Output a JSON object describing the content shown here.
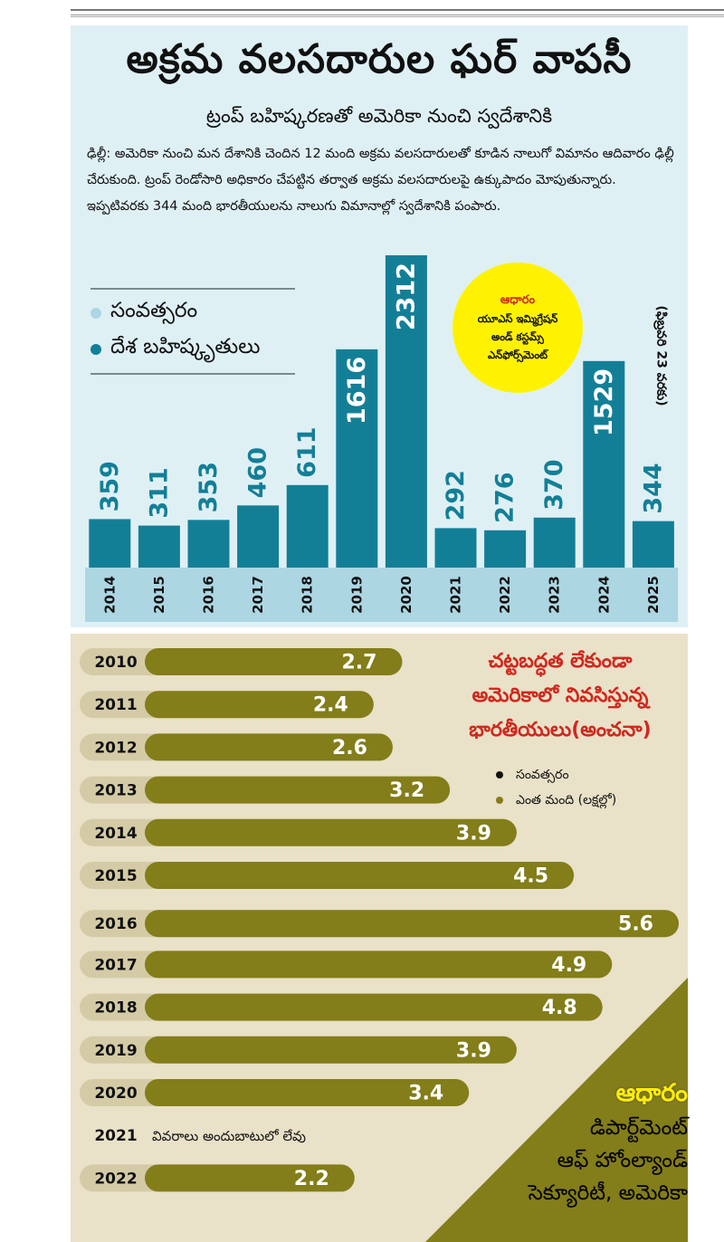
{
  "header": {
    "title": "అక్రమ వలసదారుల ఘర్ వాపసీ",
    "subtitle": "ట్రంప్ బహిష్కరణతో అమెరికా నుంచి స్వదేశానికి",
    "paragraph": "ఢిల్లీ: అమెరికా నుంచి మన దేశానికి చెందిన 12 మంది అక్రమ వలసదారులతో కూడిన నాలుగో విమానం ఆదివారం ఢిల్లీ చేరుకుంది. ట్రంప్ రెండోసారి అధికారం చేపట్టిన తర్వాత అక్రమ వలసదారులపై ఉక్కుపాదం మోపుతున్నారు. ఇప్పటివరకు 344 మంది భారతీయులను నాలుగు విమానాల్లో స్వదేశానికి పంపారు."
  },
  "legend_top": {
    "year_label": "సంవత్సరం",
    "deport_label": "దేశ బహిష్కృతులు"
  },
  "source_top": {
    "heading": "ఆధారం",
    "line1": "యూఎస్ ఇమ్మిగ్రేషన్",
    "line2": "అండ్ కస్టమ్స్",
    "line3": "ఎన్‌ఫోర్స్‌మెంట్"
  },
  "note_2025": "(ఫిబ్రవరి 23 వరకు)",
  "panel2": {
    "title_line1": "చట్టబద్ధత లేకుండా",
    "title_line2": "అమెరికాలో నివసిస్తున్న",
    "title_line3": "భారతీయులు(అంచనా)",
    "legend_year": "సంవత్సరం",
    "legend_count": "ఎంత మంది (లక్షల్లో)",
    "source_heading": "ఆధారం",
    "source_line1": "డిపార్ట్‌మెంట్",
    "source_line2": "ఆఫ్ హోంల్యాండ్",
    "source_line3": "సెక్యూరిటీ, అమెరికా"
  },
  "colors": {
    "top_bg": "#dff0f5",
    "bar_blue": "#137f97",
    "year_strip": "#acd6e2",
    "yellow": "#fff200",
    "olive": "#837d1a",
    "pill_bg": "#d4cba6",
    "bottom_bg": "#e9e1c8",
    "red": "#d0281e"
  },
  "chart_data": [
    {
      "type": "bar",
      "categories": [
        "2014",
        "2015",
        "2016",
        "2017",
        "2018",
        "2019",
        "2020",
        "2021",
        "2022",
        "2023",
        "2024",
        "2025"
      ],
      "values": [
        359,
        311,
        353,
        460,
        611,
        1616,
        2312,
        292,
        276,
        370,
        1529,
        344
      ],
      "value_labels": [
        "359",
        "311",
        "353",
        "460",
        "611",
        "1616",
        "2312",
        "292",
        "276",
        "370",
        "1529",
        "344"
      ],
      "ylim": [
        0,
        2312
      ]
    },
    {
      "type": "bar",
      "orientation": "horizontal",
      "categories": [
        "2010",
        "2011",
        "2012",
        "2013",
        "2014",
        "2015",
        "2016",
        "2017",
        "2018",
        "2019",
        "2020",
        "2021",
        "2022"
      ],
      "values": [
        2.7,
        2.4,
        2.6,
        3.2,
        3.9,
        4.5,
        5.6,
        4.9,
        4.8,
        3.9,
        3.4,
        null,
        2.2
      ],
      "value_labels": [
        "2.7",
        "2.4",
        "2.6",
        "3.2",
        "3.9",
        "4.5",
        "5.6",
        "4.9",
        "4.8",
        "3.9",
        "3.4",
        "",
        "2.2"
      ],
      "missing_note": "వివరాలు అందుబాటులో లేవు",
      "xlim": [
        0,
        5.6
      ]
    }
  ]
}
